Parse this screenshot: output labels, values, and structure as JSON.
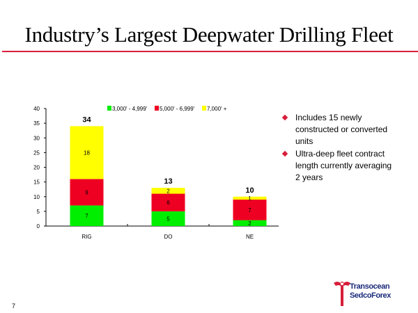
{
  "slide": {
    "title": "Industry’s Largest Deepwater Drilling Fleet",
    "page_number": "7",
    "accent_color": "#d81e3a"
  },
  "bullets": [
    {
      "text": "Includes 15 newly constructed or converted units"
    },
    {
      "text": "Ultra-deep fleet contract length currently averaging 2 years"
    }
  ],
  "logo": {
    "line1": "Transocean",
    "line2": "SedcoForex"
  },
  "chart_data": {
    "type": "bar",
    "stacked": true,
    "title": "",
    "xlabel": "",
    "ylabel": "",
    "categories": [
      "RIG",
      "DO",
      "NE"
    ],
    "series": [
      {
        "name": "3,000' - 4,999'",
        "color": "#00ee00",
        "values": [
          7,
          5,
          2
        ]
      },
      {
        "name": "5,000' - 6,999'",
        "color": "#ee0022",
        "values": [
          9,
          6,
          7
        ]
      },
      {
        "name": "7,000' +",
        "color": "#ffff00",
        "values": [
          18,
          2,
          1
        ]
      }
    ],
    "totals": [
      34,
      13,
      10
    ],
    "ylim": [
      0,
      40
    ],
    "yticks": [
      0,
      5,
      10,
      15,
      20,
      25,
      30,
      35,
      40
    ],
    "grid": false,
    "legend_position": "top"
  }
}
